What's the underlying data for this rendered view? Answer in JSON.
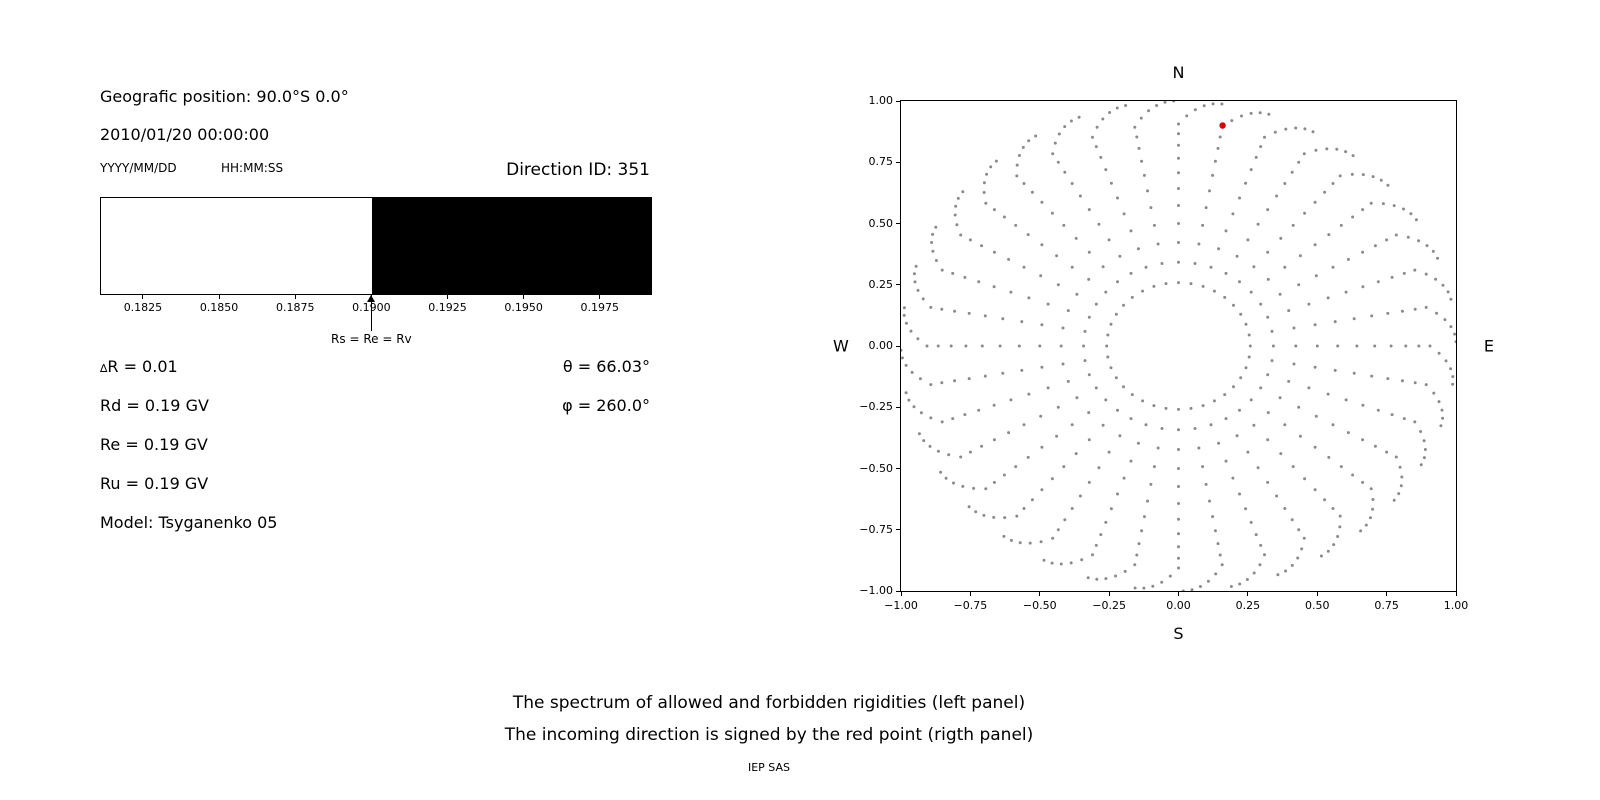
{
  "left_panel": {
    "geo_position": "Geografic position: 90.0°S 0.0°",
    "datetime": "2010/01/20 00:00:00",
    "date_format": "YYYY/MM/DD",
    "time_format": "HH:MM:SS",
    "delta_symbol": "∆",
    "delta_rest": "R = 0.01",
    "rd": "Rd = 0.19 GV",
    "re": "Re = 0.19 GV",
    "ru": "Ru = 0.19 GV",
    "model": "Model: Tsyganenko 05",
    "theta": "θ = 66.03°",
    "phi": "φ = 260.0°"
  },
  "captions": {
    "line1": "The spectrum of allowed and forbidden rigidities (left panel)",
    "line2": "The incoming direction is signed by the red point (rigth panel)",
    "credit": "IEP SAS"
  },
  "chart_data": [
    {
      "type": "area",
      "title": "Direction ID: 351",
      "xlabel": "",
      "ylabel": "",
      "xlim": [
        0.18109,
        0.19915
      ],
      "x_ticks": [
        0.1825,
        0.185,
        0.1875,
        0.19,
        0.1925,
        0.195,
        0.1975
      ],
      "x_tick_labels": [
        "0.1825",
        "0.1850",
        "0.1875",
        "0.1900",
        "0.1925",
        "0.1950",
        "0.1975"
      ],
      "regions": [
        {
          "name": "allowed",
          "from": 0.18109,
          "to": 0.19,
          "color": "#ffffff"
        },
        {
          "name": "forbidden",
          "from": 0.19,
          "to": 0.19915,
          "color": "#000000"
        }
      ],
      "marker": {
        "x": 0.19,
        "label": "Rs = Re = Rv"
      }
    },
    {
      "type": "scatter",
      "xlim": [
        -1,
        1
      ],
      "ylim": [
        -1,
        1
      ],
      "x_ticks": [
        -1,
        -0.75,
        -0.5,
        -0.25,
        0,
        0.25,
        0.5,
        0.75,
        1
      ],
      "y_ticks": [
        -1,
        -0.75,
        -0.5,
        -0.25,
        0,
        0.25,
        0.5,
        0.75,
        1
      ],
      "x_tick_labels": [
        "−1.00",
        "−0.75",
        "−0.50",
        "−0.25",
        "0.00",
        "0.25",
        "0.50",
        "0.75",
        "1.00"
      ],
      "y_tick_labels": [
        "−1.00",
        "−0.75",
        "−0.50",
        "−0.25",
        "0.00",
        "0.25",
        "0.50",
        "0.75",
        "1.00"
      ],
      "compass": {
        "top": "N",
        "bottom": "S",
        "left": "W",
        "right": "E"
      },
      "gray_points": {
        "color": "#8a8a8a",
        "azimuth_start_deg": 0,
        "azimuth_step_deg": 10,
        "azimuth_count": 36,
        "zenith_deg": [
          15,
          20,
          25,
          30,
          35,
          40,
          45,
          50,
          55,
          60,
          65,
          70,
          75,
          80,
          85,
          90
        ],
        "radius_rule": "sin(zenith)",
        "hook": {
          "start_deg": 65,
          "max_offset_deg": 9
        }
      },
      "red_point": {
        "x": 0.159,
        "y": 0.9,
        "color": "#e00000"
      }
    }
  ]
}
